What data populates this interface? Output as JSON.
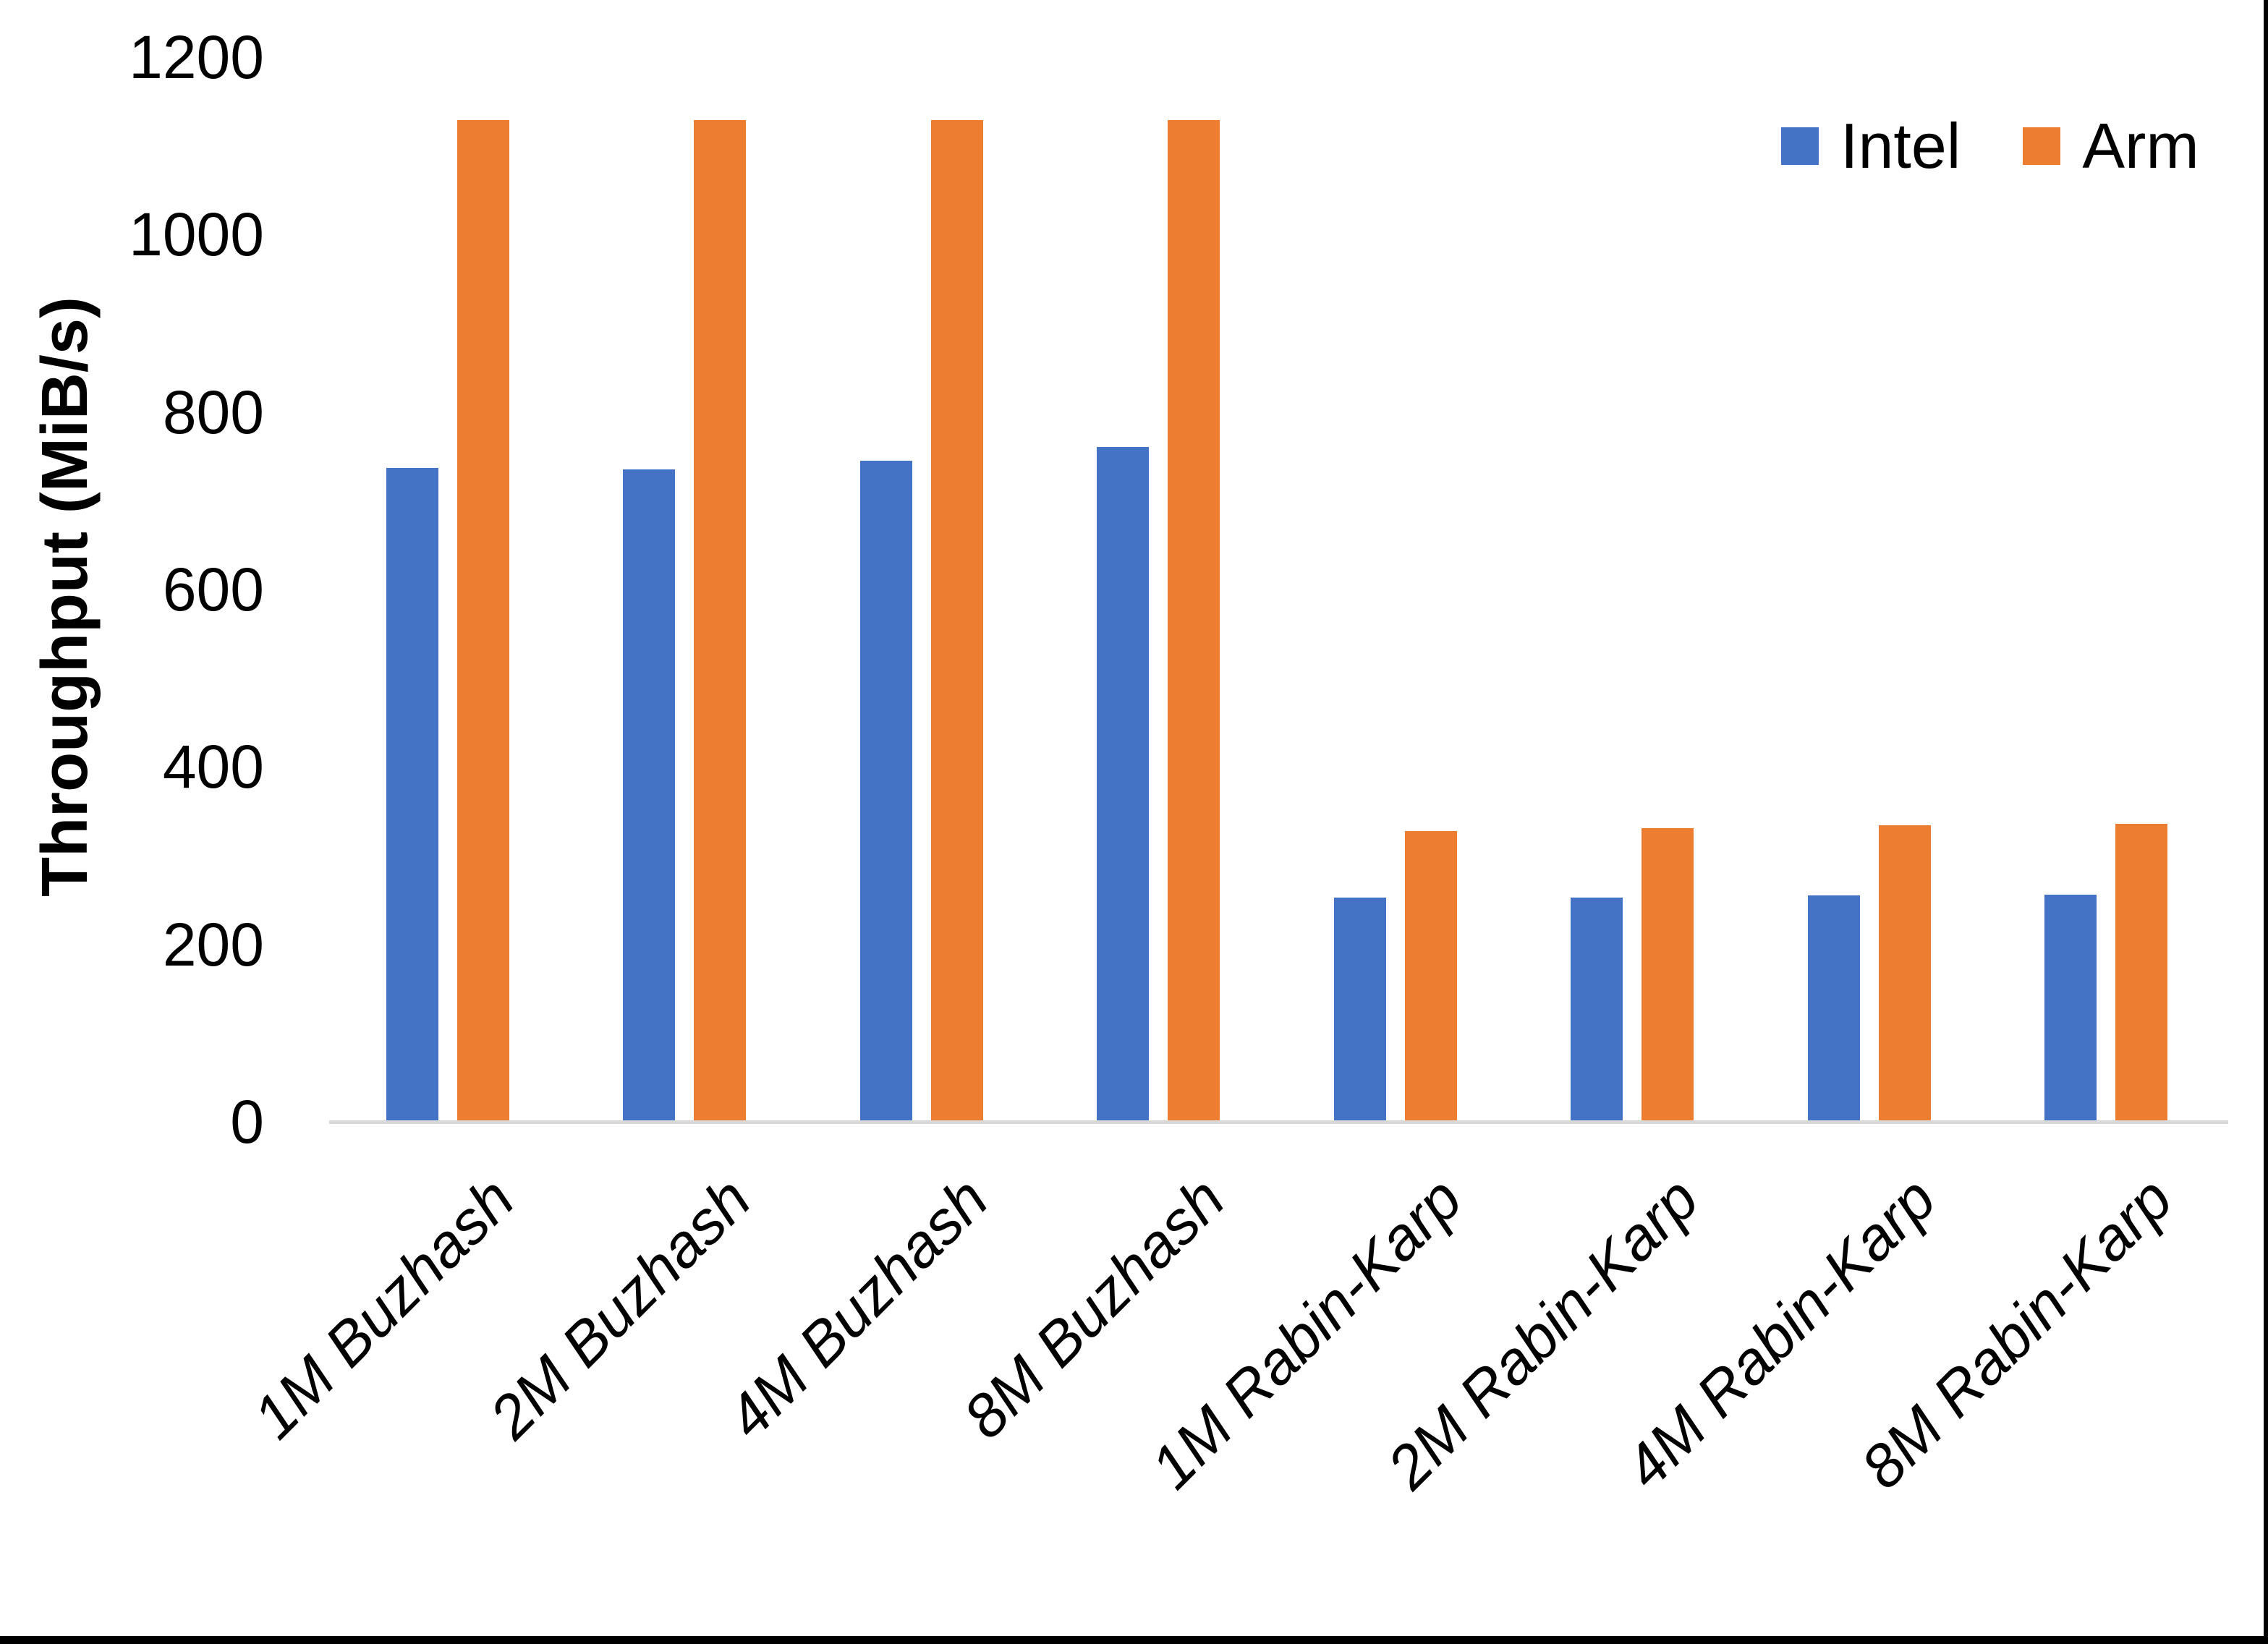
{
  "colors": {
    "intel": "#4472C4",
    "arm": "#ED7D31",
    "axis_line": "#D9D9D9",
    "border": "#000000",
    "text": "#000000"
  },
  "y_axis": {
    "title": "Throughput (MiB/s)",
    "tick_labels": [
      "0",
      "200",
      "400",
      "600",
      "800",
      "1000",
      "1200"
    ]
  },
  "legend": {
    "items": [
      {
        "label": "Intel",
        "color": "#4472C4"
      },
      {
        "label": "Arm",
        "color": "#ED7D31"
      }
    ]
  },
  "chart_data": {
    "type": "bar",
    "title": "",
    "xlabel": "",
    "ylabel": "Throughput (MiB/s)",
    "ylim": [
      0,
      1200
    ],
    "ytick_step": 200,
    "grid": false,
    "legend_position": "top-right",
    "categories": [
      "1M Buzhash",
      "2M Buzhash",
      "4M Buzhash",
      "8M Buzhash",
      "1M Rabin-Karp",
      "2M Rabin-Karp",
      "4M Rabin-Karp",
      "8M Rabin-Karp"
    ],
    "series": [
      {
        "name": "Intel",
        "color": "#4472C4",
        "values": [
          737,
          735,
          745,
          761,
          253,
          253,
          255,
          256
        ]
      },
      {
        "name": "Arm",
        "color": "#ED7D31",
        "values": [
          1129,
          1129,
          1129,
          1129,
          328,
          331,
          334,
          336
        ]
      }
    ]
  }
}
